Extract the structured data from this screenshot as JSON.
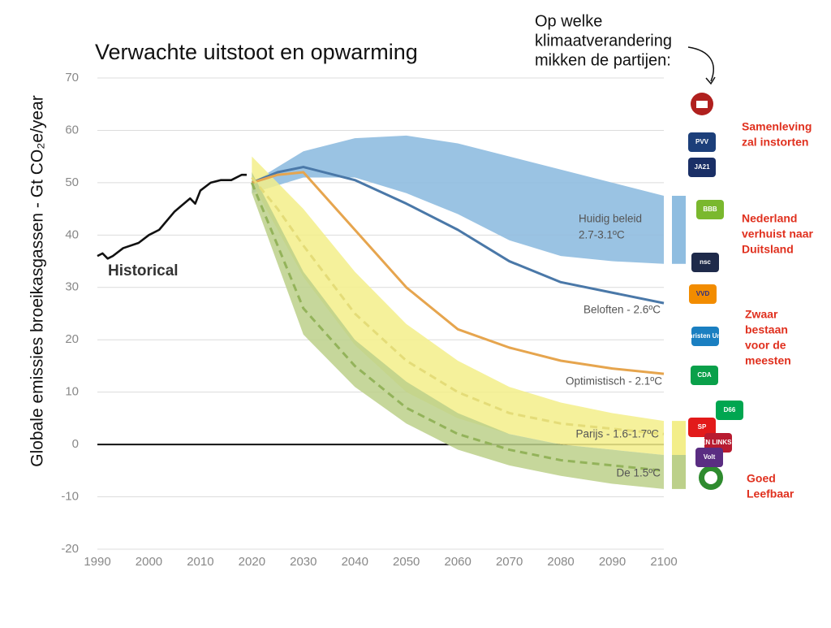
{
  "chart_data": {
    "type": "line",
    "title": "Verwachte uitstoot en opwarming",
    "y_label": "Globale emissies broeikasgassen - Gt CO₂e/year",
    "annotation_lines": [
      "Op welke",
      "klimaatverandering",
      "mikken de partijen:"
    ],
    "xlim": [
      1990,
      2100
    ],
    "xticks": [
      1990,
      2000,
      2010,
      2020,
      2030,
      2040,
      2050,
      2060,
      2070,
      2080,
      2090,
      2100
    ],
    "ylim": [
      -20,
      70
    ],
    "yticks": [
      -20,
      -10,
      0,
      10,
      20,
      30,
      40,
      50,
      60,
      70
    ],
    "grid": true,
    "zero_line": true,
    "series": [
      {
        "name": "Historical",
        "color": "#111111",
        "dashed": false,
        "x": [
          1990,
          1991,
          1992,
          1993,
          1995,
          1998,
          2000,
          2002,
          2005,
          2008,
          2009,
          2010,
          2012,
          2014,
          2016,
          2018,
          2019
        ],
        "values": [
          36,
          36.5,
          35.5,
          36,
          37.5,
          38.5,
          40,
          41,
          44.5,
          47,
          46,
          48.5,
          50,
          50.5,
          50.5,
          51.5,
          51.5
        ]
      },
      {
        "name": "Beloften - 2.6ºC",
        "color": "#4a78a8",
        "dashed": false,
        "x": [
          2020,
          2025,
          2030,
          2040,
          2050,
          2060,
          2070,
          2080,
          2090,
          2100
        ],
        "values": [
          50,
          52,
          53,
          50.5,
          46,
          41,
          35,
          31,
          29,
          27
        ]
      },
      {
        "name": "Optimistisch - 2.1ºC",
        "color": "#e6a54e",
        "dashed": false,
        "x": [
          2020,
          2025,
          2030,
          2040,
          2050,
          2060,
          2070,
          2080,
          2090,
          2100
        ],
        "values": [
          50,
          51.5,
          52,
          41,
          30,
          22,
          18.5,
          16,
          14.5,
          13.5
        ]
      },
      {
        "name": "Parijs - 1.6-1.7ºC",
        "color": "#e4dc78",
        "dashed": true,
        "x": [
          2020,
          2025,
          2030,
          2040,
          2050,
          2060,
          2070,
          2080,
          2090,
          2100
        ],
        "values": [
          51,
          45,
          38,
          25,
          16,
          10,
          6,
          4,
          3,
          2
        ]
      },
      {
        "name": "De 1.5ºC",
        "color": "#93b35a",
        "dashed": true,
        "x": [
          2020,
          2025,
          2030,
          2040,
          2050,
          2060,
          2070,
          2080,
          2090,
          2100
        ],
        "values": [
          50,
          38,
          26,
          15,
          7,
          2,
          -1,
          -3,
          -4,
          -5
        ]
      }
    ],
    "bands": [
      {
        "name_lines": [
          "Huidig beleid",
          "2.7-3.1ºC"
        ],
        "color": "#8fbde0",
        "x": [
          2020,
          2030,
          2040,
          2050,
          2060,
          2070,
          2080,
          2090,
          2100
        ],
        "upper": [
          50,
          56,
          58.5,
          59,
          57.5,
          55,
          52.5,
          50,
          47.5
        ],
        "lower": [
          48,
          51,
          51,
          48,
          44,
          39,
          36,
          35,
          34.5
        ]
      },
      {
        "color": "#f3ee8a",
        "x": [
          2020,
          2030,
          2040,
          2050,
          2060,
          2070,
          2080,
          2090,
          2100
        ],
        "upper": [
          55,
          45,
          33,
          23,
          16,
          11,
          8,
          6,
          4.5
        ],
        "lower": [
          50,
          32,
          19,
          10,
          5,
          2,
          0,
          -1,
          -2
        ]
      },
      {
        "color": "#bcd08a",
        "x": [
          2020,
          2030,
          2040,
          2050,
          2060,
          2070,
          2080,
          2090,
          2100
        ],
        "upper": [
          52,
          33,
          20,
          12,
          6,
          2,
          0,
          -1,
          -2
        ],
        "lower": [
          48,
          21,
          11,
          4,
          -1,
          -4,
          -6,
          -7.5,
          -8.5
        ]
      }
    ],
    "party_groups": [
      {
        "label_lines": [
          "Samenleving",
          "zal instorten"
        ],
        "parties": [
          "PVV",
          "JA21"
        ]
      },
      {
        "label_lines": [
          "Nederland",
          "verhuist naar",
          "Duitsland"
        ],
        "parties": [
          "BBB",
          "nsc",
          "VVD"
        ]
      },
      {
        "label_lines": [
          "Zwaar",
          "bestaan",
          "voor de",
          "meesten"
        ],
        "parties": [
          "Christen Unie",
          "CDA"
        ]
      },
      {
        "label_lines": [
          "Goed",
          "Leefbaar"
        ],
        "parties": [
          "D66",
          "SP",
          "GROEN LINKS PvdA",
          "Volt"
        ]
      }
    ]
  }
}
